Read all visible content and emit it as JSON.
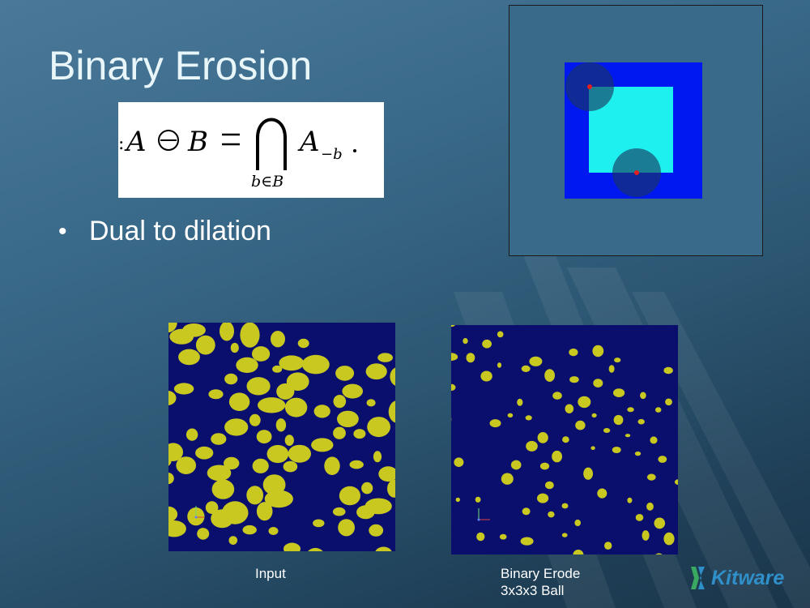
{
  "slide": {
    "title": "Binary Erosion",
    "bullets": [
      "Dual to dilation"
    ],
    "formula_image": "binary-erosion-formula",
    "captions": {
      "input": "Input",
      "output_line1": "Binary Erode",
      "output_line2": "3x3x3 Ball"
    },
    "logo_name": "Kitware",
    "colors": {
      "background": "#2c5672",
      "title_text": "#e8f6fa",
      "diagram_blue": "#0018f0",
      "diagram_cyan": "#1ef0f0",
      "image_background": "#0a0f6e",
      "blob_yellow": "#c9c820",
      "logo_blue": "#2f8fc8"
    }
  }
}
